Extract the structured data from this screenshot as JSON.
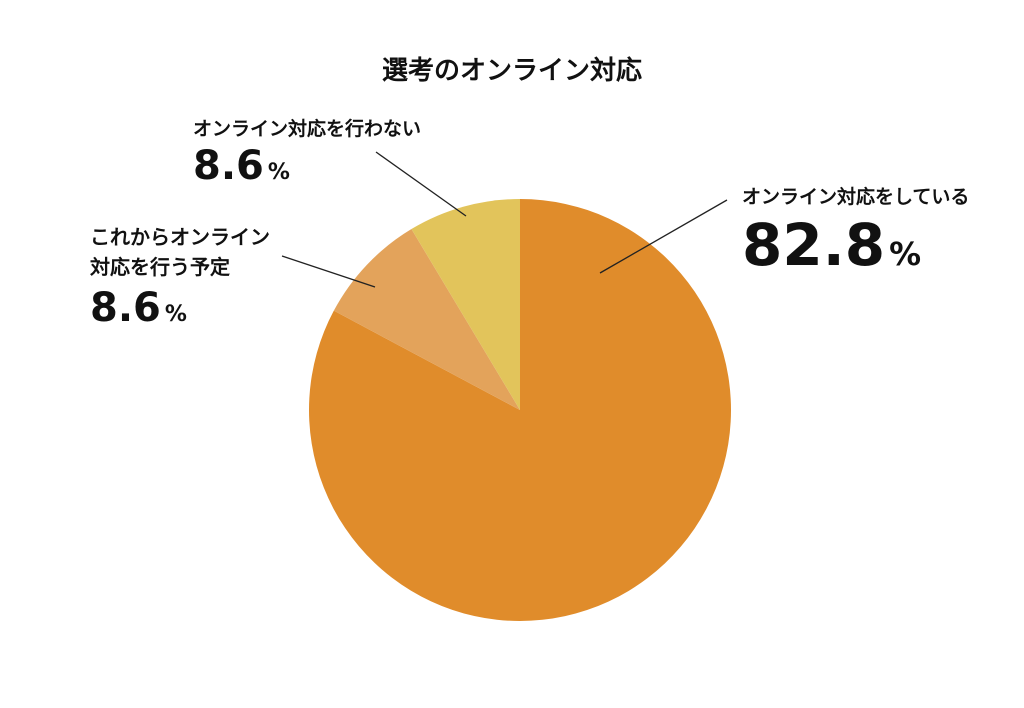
{
  "chart_data": {
    "type": "pie",
    "title": "選考のオンライン対応",
    "categories": [
      "オンライン対応をしている",
      "これからオンライン対応を行う予定",
      "オンライン対応を行わない"
    ],
    "values": [
      82.8,
      8.6,
      8.6
    ],
    "unit": "%",
    "colors": [
      "#e08c2b",
      "#e3a35b",
      "#e2c45b"
    ]
  }
}
